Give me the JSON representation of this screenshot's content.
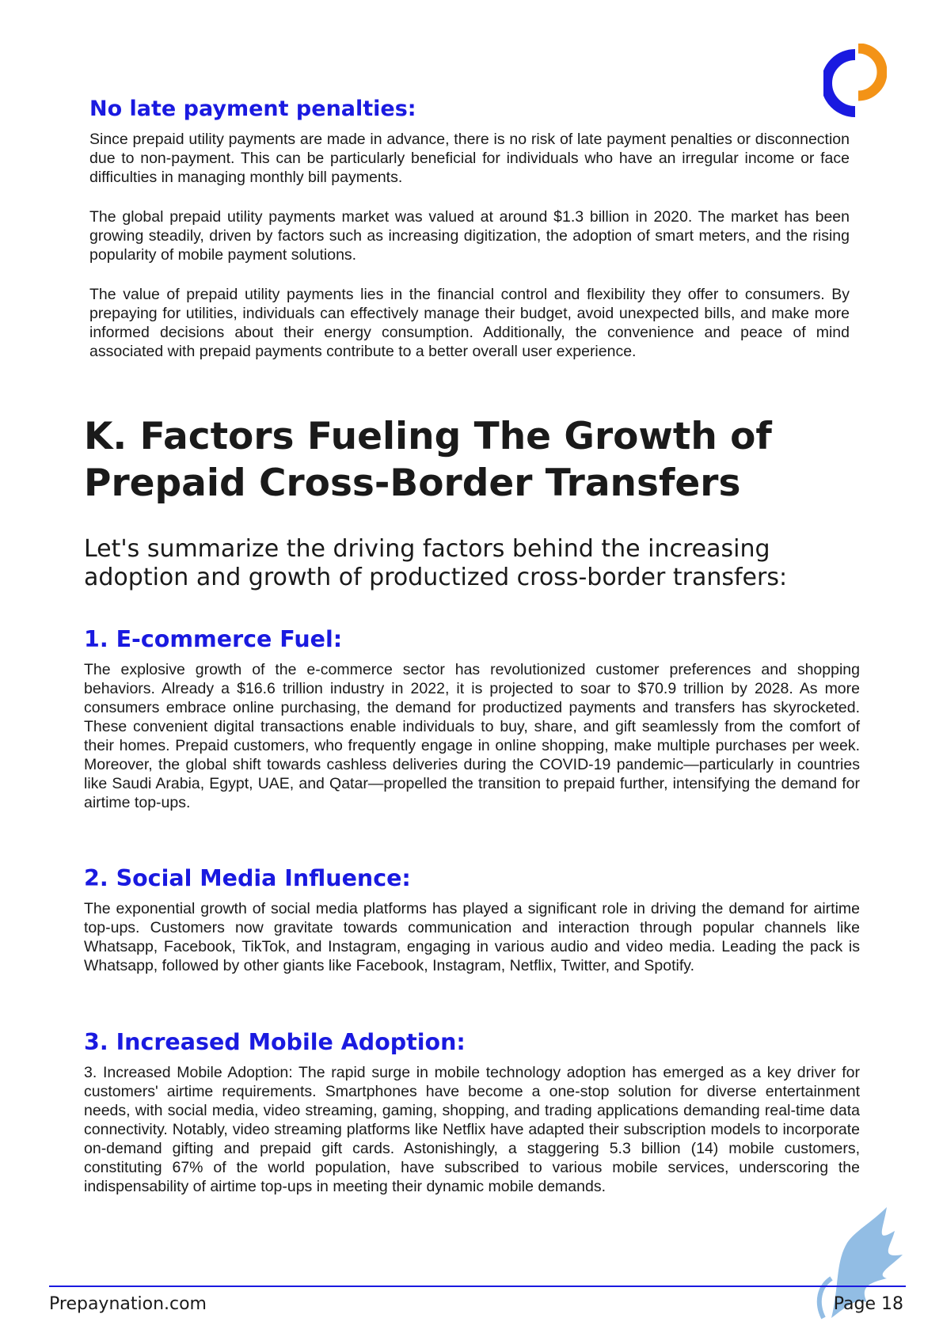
{
  "section_no_late": {
    "heading": "No late payment penalties:",
    "para1": "Since prepaid utility payments are made in advance, there is no risk of late payment penalties or disconnection due to non-payment. This can be particularly beneficial for individuals who have an irregular income or face difficulties in managing monthly bill payments.",
    "para2": "The global prepaid utility payments market was valued at around $1.3 billion in 2020. The market has been growing steadily, driven by factors such as increasing digitization, the adoption of smart meters, and the rising popularity of mobile payment solutions.",
    "para3": "The value of prepaid utility payments lies in the financial control and flexibility they offer to consumers. By prepaying for utilities, individuals can effectively manage their budget, avoid unexpected bills, and make more informed decisions about their energy consumption. Additionally, the convenience and peace of mind associated with prepaid payments contribute to a better overall user experience."
  },
  "section_k": {
    "title_line1": "K. Factors Fueling The Growth of",
    "title_line2": "Prepaid Cross-Border Transfers",
    "lead_line1": "Let's summarize the driving factors behind the increasing",
    "lead_line2": "adoption and growth of productized cross-border transfers:"
  },
  "factors": [
    {
      "heading": "1. E-commerce Fuel:",
      "text": "The explosive growth of the e-commerce sector has revolutionized customer preferences and shopping behaviors. Already a $16.6 trillion industry in 2022, it is projected to soar to $70.9 trillion by 2028. As more consumers embrace online purchasing, the demand for productized payments and transfers has skyrocketed. These convenient digital transactions enable individuals to buy, share, and gift seamlessly from the comfort of their homes. Prepaid customers, who frequently engage in online shopping, make multiple purchases per week. Moreover, the global shift towards cashless deliveries during the COVID-19 pandemic—particularly in countries like Saudi Arabia, Egypt, UAE, and Qatar—propelled the transition to prepaid further, intensifying the demand for airtime top-ups."
    },
    {
      "heading": "2. Social Media Influence:",
      "text": "The exponential growth of social media platforms has played a significant role in driving the demand for airtime top-ups. Customers now gravitate towards communication and interaction through popular channels like Whatsapp, Facebook, TikTok, and Instagram, engaging in various audio and video media. Leading the pack is Whatsapp, followed by other giants like Facebook, Instagram, Netflix, Twitter, and Spotify."
    },
    {
      "heading": "3. Increased Mobile Adoption:",
      "text": "3.   Increased Mobile Adoption: The rapid surge in mobile technology adoption has emerged as a key driver for customers' airtime requirements. Smartphones have become a one-stop solution for diverse entertainment needs, with social media, video streaming, gaming, shopping, and trading applications demanding real-time data connectivity. Notably, video streaming platforms like Netflix have adapted their subscription models to incorporate on-demand gifting and prepaid gift cards. Astonishingly, a staggering 5.3 billion (14) mobile customers, constituting 67% of the world population, have subscribed to various mobile services, underscoring the indispensability of airtime top-ups in meeting their dynamic mobile demands."
    }
  ],
  "footer": {
    "site": "Prepaynation.com",
    "page": "Page 18"
  },
  "colors": {
    "accent_blue": "#1a1ae0",
    "logo_orange": "#f39317"
  }
}
